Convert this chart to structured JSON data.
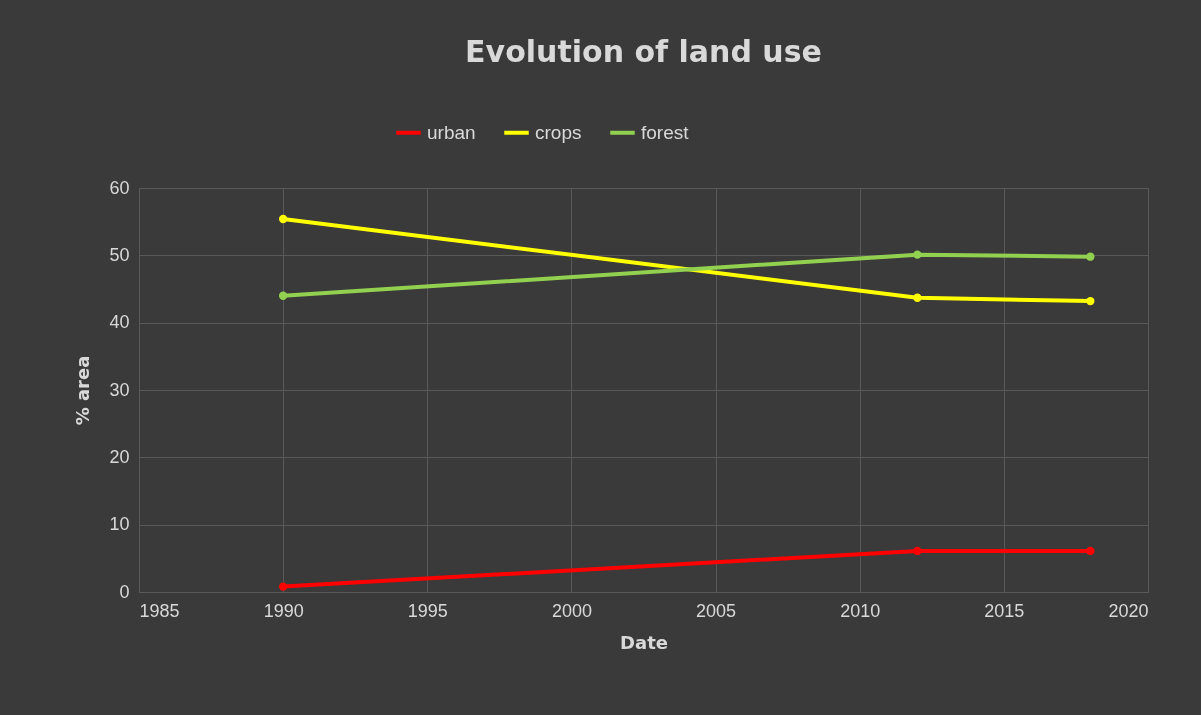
{
  "chart_data": {
    "type": "line",
    "title": "Evolution of land use",
    "xlabel": "Date",
    "ylabel": "% area",
    "x": [
      1990,
      2012,
      2018
    ],
    "series": [
      {
        "name": "urban",
        "color": "#ff0000",
        "values": [
          0.8,
          6.1,
          6.1
        ]
      },
      {
        "name": "crops",
        "color": "#ffff00",
        "values": [
          55.4,
          43.7,
          43.2
        ]
      },
      {
        "name": "forest",
        "color": "#92d050",
        "values": [
          44.0,
          50.1,
          49.8
        ]
      }
    ],
    "xlim": [
      1985,
      2020
    ],
    "xticks": [
      1985,
      1990,
      1995,
      2000,
      2005,
      2010,
      2015,
      2020
    ],
    "ylim": [
      0,
      60
    ],
    "yticks": [
      0,
      10,
      20,
      30,
      40,
      50,
      60
    ],
    "grid": true,
    "legend": "top",
    "marker": "circle",
    "line_style": "solid"
  }
}
